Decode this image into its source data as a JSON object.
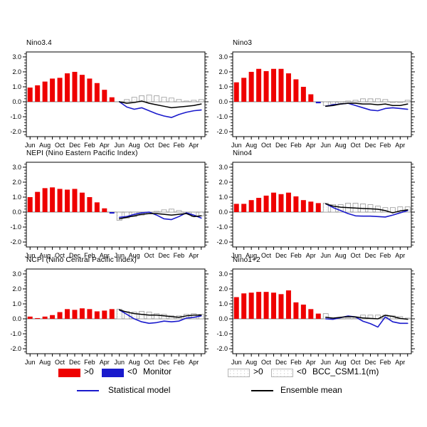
{
  "colors": {
    "positive": "#ee0000",
    "negative": "#1a1acc",
    "stat_model": "#1a1acc",
    "ensemble": "#000000",
    "model_bar_outline": "#9a9a9a",
    "model_bar_dot": "#c4c4c4",
    "axis": "#000000",
    "zero_line": "#808080"
  },
  "axis": {
    "ytick_labels": [
      "3.0",
      "2.0",
      "1.0",
      "0.0",
      "-1.0",
      "-2.0"
    ],
    "yticks": [
      3,
      2,
      1,
      0,
      -1,
      -2
    ],
    "ylim": [
      -2.33,
      3.33
    ],
    "xtick_label_step": 2
  },
  "legend": {
    "monitor": {
      "pos_label": ">0",
      "neg_label": "<0",
      "name": "Monitor"
    },
    "model": {
      "pos_label": ">0",
      "neg_label": "<0",
      "name": "BCC_CSM1.1(m)"
    },
    "stat_line": {
      "label": "Statistical model"
    },
    "ens_line": {
      "label": "Ensemble mean"
    }
  },
  "chart_data": [
    {
      "type": "bar",
      "title": "Nino3.4",
      "months": [
        "Jun",
        "Jul",
        "Aug",
        "Sep",
        "Oct",
        "Nov",
        "Dec",
        "Jan",
        "Feb",
        "Mar",
        "Apr",
        "May",
        "Jun",
        "Jul",
        "Aug",
        "Sep",
        "Oct",
        "Nov",
        "Dec",
        "Jan",
        "Feb",
        "Mar",
        "Apr",
        "May"
      ],
      "observed": [
        0.95,
        1.1,
        1.35,
        1.55,
        1.6,
        1.9,
        2.0,
        1.8,
        1.55,
        1.25,
        0.8,
        0.3
      ],
      "model_bars": [
        0.0,
        0.15,
        0.3,
        0.4,
        0.45,
        0.4,
        0.3,
        0.25,
        0.15,
        0.05,
        0.1,
        0.15
      ],
      "ensemble_mean": [
        0.0,
        -0.1,
        -0.05,
        0.05,
        -0.1,
        -0.2,
        -0.3,
        -0.4,
        -0.35,
        -0.3,
        -0.25,
        -0.15
      ],
      "statistical_model": [
        0.0,
        -0.35,
        -0.5,
        -0.4,
        -0.6,
        -0.8,
        -0.95,
        -1.05,
        -0.85,
        -0.7,
        -0.6,
        -0.55
      ]
    },
    {
      "type": "bar",
      "title": "Nino3",
      "months": [
        "Jun",
        "Jul",
        "Aug",
        "Sep",
        "Oct",
        "Nov",
        "Dec",
        "Jan",
        "Feb",
        "Mar",
        "Apr",
        "May",
        "Jun",
        "Jul",
        "Aug",
        "Sep",
        "Oct",
        "Nov",
        "Dec",
        "Jan",
        "Feb",
        "Mar",
        "Apr",
        "May"
      ],
      "observed": [
        1.3,
        1.6,
        2.0,
        2.2,
        2.05,
        2.2,
        2.2,
        1.9,
        1.5,
        1.0,
        0.5,
        -0.1
      ],
      "model_bars": [
        -0.25,
        -0.15,
        -0.1,
        0.05,
        0.1,
        0.2,
        0.2,
        0.2,
        0.15,
        -0.05,
        -0.05,
        0.1
      ],
      "ensemble_mean": [
        -0.3,
        -0.25,
        -0.15,
        -0.1,
        -0.1,
        -0.15,
        -0.15,
        -0.2,
        -0.15,
        -0.25,
        -0.25,
        -0.15
      ],
      "statistical_model": [
        -0.3,
        -0.2,
        -0.15,
        -0.1,
        -0.25,
        -0.4,
        -0.55,
        -0.6,
        -0.45,
        -0.4,
        -0.45,
        -0.5
      ]
    },
    {
      "type": "bar",
      "title": "NEPI (Nino Eastern Pacific Index)",
      "months": [
        "Jun",
        "Jul",
        "Aug",
        "Sep",
        "Oct",
        "Nov",
        "Dec",
        "Jan",
        "Feb",
        "Mar",
        "Apr",
        "May",
        "Jun",
        "Jul",
        "Aug",
        "Sep",
        "Oct",
        "Nov",
        "Dec",
        "Jan",
        "Feb",
        "Mar",
        "Apr",
        "May"
      ],
      "observed": [
        1.0,
        1.35,
        1.6,
        1.65,
        1.55,
        1.5,
        1.55,
        1.3,
        1.0,
        0.65,
        0.25,
        -0.1
      ],
      "model_bars": [
        -0.55,
        -0.4,
        -0.3,
        -0.2,
        -0.1,
        0.05,
        0.15,
        0.2,
        0.1,
        -0.1,
        -0.3,
        -0.25
      ],
      "ensemble_mean": [
        -0.45,
        -0.35,
        -0.25,
        -0.15,
        -0.1,
        -0.1,
        -0.15,
        -0.2,
        -0.15,
        -0.1,
        -0.3,
        -0.25
      ],
      "statistical_model": [
        -0.35,
        -0.3,
        -0.15,
        -0.05,
        0.0,
        -0.2,
        -0.45,
        -0.5,
        -0.3,
        -0.05,
        -0.2,
        -0.4
      ]
    },
    {
      "type": "bar",
      "title": "Nino4",
      "months": [
        "Jun",
        "Jul",
        "Aug",
        "Sep",
        "Oct",
        "Nov",
        "Dec",
        "Jan",
        "Feb",
        "Mar",
        "Apr",
        "May",
        "Jun",
        "Jul",
        "Aug",
        "Sep",
        "Oct",
        "Nov",
        "Dec",
        "Jan",
        "Feb",
        "Mar",
        "Apr",
        "May"
      ],
      "observed": [
        0.55,
        0.55,
        0.8,
        0.95,
        1.1,
        1.3,
        1.2,
        1.3,
        1.05,
        0.8,
        0.7,
        0.6
      ],
      "model_bars": [
        0.6,
        0.5,
        0.5,
        0.6,
        0.6,
        0.55,
        0.5,
        0.4,
        0.3,
        0.3,
        0.35,
        0.35
      ],
      "ensemble_mean": [
        0.55,
        0.4,
        0.33,
        0.3,
        0.27,
        0.24,
        0.22,
        0.19,
        0.1,
        -0.05,
        0.08,
        0.15
      ],
      "statistical_model": [
        0.55,
        0.3,
        0.1,
        -0.1,
        -0.25,
        -0.27,
        -0.27,
        -0.3,
        -0.33,
        -0.2,
        -0.05,
        0.1
      ]
    },
    {
      "type": "bar",
      "title": "NCPI (Nino Central Pacific Index)",
      "months": [
        "Jun",
        "Jul",
        "Aug",
        "Sep",
        "Oct",
        "Nov",
        "Dec",
        "Jan",
        "Feb",
        "Mar",
        "Apr",
        "May",
        "Jun",
        "Jul",
        "Aug",
        "Sep",
        "Oct",
        "Nov",
        "Dec",
        "Jan",
        "Feb",
        "Mar",
        "Apr",
        "May"
      ],
      "observed": [
        0.15,
        0.05,
        0.15,
        0.25,
        0.45,
        0.65,
        0.6,
        0.7,
        0.65,
        0.5,
        0.55,
        0.65
      ],
      "model_bars": [
        0.65,
        0.5,
        0.45,
        0.5,
        0.45,
        0.35,
        0.3,
        0.2,
        0.2,
        0.3,
        0.35,
        0.3
      ],
      "ensemble_mean": [
        0.6,
        0.45,
        0.35,
        0.3,
        0.25,
        0.25,
        0.2,
        0.15,
        0.1,
        0.2,
        0.25,
        0.25
      ],
      "statistical_model": [
        0.6,
        0.3,
        0.0,
        -0.2,
        -0.3,
        -0.25,
        -0.15,
        -0.2,
        -0.15,
        0.05,
        0.1,
        0.2
      ]
    },
    {
      "type": "bar",
      "title": "Nino1+2",
      "months": [
        "Jun",
        "Jul",
        "Aug",
        "Sep",
        "Oct",
        "Nov",
        "Dec",
        "Jan",
        "Feb",
        "Mar",
        "Apr",
        "May",
        "Jun",
        "Jul",
        "Aug",
        "Sep",
        "Oct",
        "Nov",
        "Dec",
        "Jan",
        "Feb",
        "Mar",
        "Apr",
        "May"
      ],
      "observed": [
        1.45,
        1.7,
        1.75,
        1.8,
        1.8,
        1.75,
        1.65,
        1.9,
        1.1,
        0.95,
        0.65,
        0.35
      ],
      "model_bars": [
        0.35,
        0.05,
        0.0,
        0.05,
        0.05,
        0.25,
        0.25,
        0.25,
        0.25,
        0.2,
        0.15,
        0.05
      ],
      "ensemble_mean": [
        0.1,
        0.05,
        0.1,
        0.15,
        0.13,
        0.06,
        0.03,
        0.0,
        0.24,
        0.16,
        0.03,
        -0.03
      ],
      "statistical_model": [
        0.0,
        -0.03,
        0.08,
        0.19,
        0.13,
        -0.16,
        -0.32,
        -0.55,
        0.13,
        -0.2,
        -0.3,
        -0.3
      ]
    }
  ]
}
